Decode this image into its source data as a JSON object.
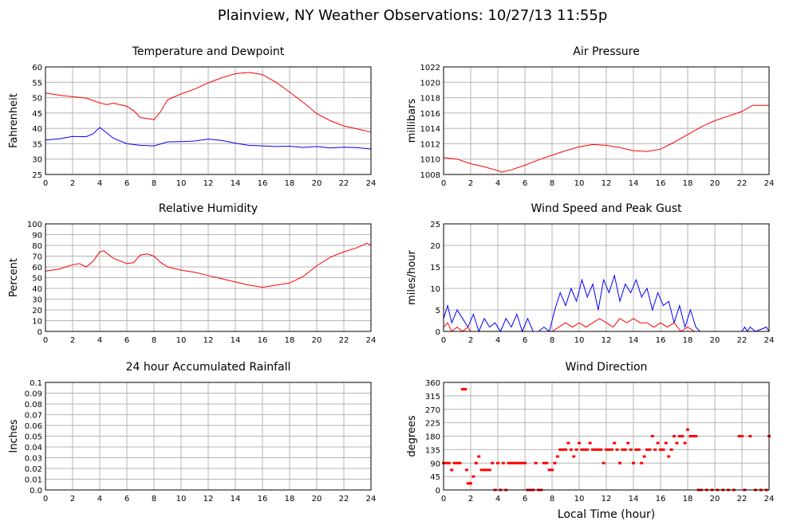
{
  "page": {
    "title": "Plainview, NY Weather Observations: 10/27/13 11:55p"
  },
  "colors": {
    "red": "#ff0000",
    "blue": "#0000ff",
    "grid": "#b4b4b4",
    "axis": "#000000"
  },
  "chart_data": [
    {
      "type": "line",
      "title": "Temperature and Dewpoint",
      "xlabel": "",
      "ylabel": "Fahrenheit",
      "xlim": [
        0,
        24
      ],
      "ylim": [
        25,
        60
      ],
      "xticks": [
        "0",
        "2",
        "4",
        "6",
        "8",
        "10",
        "12",
        "14",
        "16",
        "18",
        "20",
        "22",
        "24"
      ],
      "yticks": [
        "25",
        "30",
        "35",
        "40",
        "45",
        "50",
        "55",
        "60"
      ],
      "grid": true,
      "series": [
        {
          "color": "#ff0000",
          "x": [
            0,
            1,
            2,
            3,
            4,
            4.5,
            5,
            6,
            6.5,
            7,
            7.5,
            8,
            8.5,
            9,
            10,
            11,
            12,
            13,
            14,
            15,
            16,
            17,
            18,
            19,
            20,
            21,
            22,
            23,
            24
          ],
          "y": [
            51.5,
            50.8,
            50.3,
            49.8,
            48.3,
            47.7,
            48.2,
            47.2,
            45.8,
            43.5,
            43.2,
            42.8,
            45.5,
            49.3,
            51.2,
            52.8,
            54.8,
            56.5,
            57.8,
            58.2,
            57.5,
            55,
            51.8,
            48.5,
            44.8,
            42.5,
            40.8,
            39.8,
            38.8
          ]
        },
        {
          "color": "#0000ff",
          "x": [
            0,
            1,
            2,
            3,
            3.5,
            4,
            4.5,
            5,
            6,
            7,
            8,
            9,
            10,
            11,
            12,
            13,
            14,
            15,
            16,
            17,
            18,
            19,
            20,
            21,
            22,
            23,
            24
          ],
          "y": [
            36.2,
            36.6,
            37.4,
            37.3,
            38.2,
            40.3,
            38.6,
            36.8,
            35,
            34.5,
            34.3,
            35.6,
            35.7,
            35.9,
            36.5,
            36.1,
            35.2,
            34.5,
            34.3,
            34.1,
            34.2,
            33.8,
            34.1,
            33.6,
            33.9,
            33.7,
            33.3
          ]
        }
      ]
    },
    {
      "type": "line",
      "title": "Air Pressure",
      "xlabel": "",
      "ylabel": "millibars",
      "xlim": [
        0,
        24
      ],
      "ylim": [
        1008,
        1022
      ],
      "xticks": [
        "0",
        "2",
        "4",
        "6",
        "8",
        "10",
        "12",
        "14",
        "16",
        "18",
        "20",
        "22",
        "24"
      ],
      "yticks": [
        "1008",
        "1010",
        "1012",
        "1014",
        "1016",
        "1018",
        "1020",
        "1022"
      ],
      "grid": true,
      "series": [
        {
          "color": "#ff0000",
          "x": [
            0,
            1,
            2,
            3,
            4,
            4.3,
            5,
            6,
            7,
            8,
            9,
            10,
            11,
            12,
            13,
            14,
            15,
            16,
            17,
            18,
            19,
            20,
            21,
            22,
            22.8,
            24
          ],
          "y": [
            1010.2,
            1010,
            1009.4,
            1009,
            1008.5,
            1008.3,
            1008.6,
            1009.2,
            1009.9,
            1010.5,
            1011.1,
            1011.6,
            1011.9,
            1011.8,
            1011.5,
            1011.1,
            1011,
            1011.3,
            1012.2,
            1013.2,
            1014.2,
            1015,
            1015.6,
            1016.2,
            1017,
            1017
          ]
        }
      ]
    },
    {
      "type": "line",
      "title": "Relative Humidity",
      "xlabel": "",
      "ylabel": "Percent",
      "xlim": [
        0,
        24
      ],
      "ylim": [
        0,
        100
      ],
      "xticks": [
        "0",
        "2",
        "4",
        "6",
        "8",
        "10",
        "12",
        "14",
        "16",
        "18",
        "20",
        "22",
        "24"
      ],
      "yticks": [
        "0",
        "10",
        "20",
        "30",
        "40",
        "50",
        "60",
        "70",
        "80",
        "90",
        "100"
      ],
      "grid": true,
      "series": [
        {
          "color": "#ff0000",
          "x": [
            0,
            1,
            2,
            2.5,
            3,
            3.5,
            4,
            4.3,
            5,
            6,
            6.5,
            7,
            7.5,
            8,
            8.5,
            9,
            10,
            11,
            12,
            13,
            14,
            15,
            16,
            17,
            18,
            19,
            20,
            21,
            22,
            23,
            23.7,
            24
          ],
          "y": [
            56,
            58,
            62,
            63,
            60,
            65,
            74,
            75,
            68,
            63,
            64,
            71,
            72,
            70,
            64,
            60,
            57,
            55,
            52,
            49,
            46,
            43,
            41,
            43,
            45,
            51,
            61,
            69,
            74,
            78,
            82,
            80
          ]
        }
      ]
    },
    {
      "type": "line",
      "title": "Wind Speed and Peak Gust",
      "xlabel": "",
      "ylabel": "miles/hour",
      "xlim": [
        0,
        24
      ],
      "ylim": [
        0,
        25
      ],
      "xticks": [
        "0",
        "2",
        "4",
        "6",
        "8",
        "10",
        "12",
        "14",
        "16",
        "18",
        "20",
        "22",
        "24"
      ],
      "yticks": [
        "0",
        "5",
        "10",
        "15",
        "20",
        "25"
      ],
      "grid": true,
      "series": [
        {
          "color": "#0000ff",
          "x": [
            0,
            0.3,
            0.6,
            1,
            1.4,
            1.8,
            2.2,
            2.6,
            3,
            3.4,
            3.8,
            4.2,
            4.6,
            5,
            5.4,
            5.8,
            6.2,
            6.6,
            7,
            7.4,
            7.8,
            8.2,
            8.6,
            9,
            9.4,
            9.8,
            10.2,
            10.6,
            11,
            11.4,
            11.8,
            12.2,
            12.6,
            13,
            13.4,
            13.8,
            14.2,
            14.6,
            15,
            15.4,
            15.8,
            16.2,
            16.6,
            17,
            17.4,
            17.8,
            18.2,
            18.6,
            18.9,
            19,
            20,
            21,
            22,
            22.2,
            22.4,
            22.6,
            23,
            23.8,
            24
          ],
          "y": [
            3,
            6,
            2,
            5,
            3,
            1,
            4,
            0,
            3,
            1,
            2,
            0,
            3,
            1,
            4,
            0,
            3,
            0,
            0,
            1,
            0,
            5,
            9,
            6,
            10,
            7,
            12,
            8,
            11,
            5,
            12,
            9,
            13,
            7,
            11,
            9,
            12,
            8,
            10,
            5,
            9,
            6,
            7,
            2,
            6,
            1,
            5,
            1,
            0,
            0,
            0,
            0,
            0,
            1,
            0,
            1,
            0,
            1,
            0
          ]
        },
        {
          "color": "#ff0000",
          "x": [
            0,
            0.3,
            0.6,
            1,
            1.4,
            1.8,
            2,
            7.8,
            8,
            8.5,
            9,
            9.5,
            10,
            10.5,
            11,
            11.5,
            12,
            12.5,
            13,
            13.5,
            14,
            14.5,
            15,
            15.5,
            16,
            16.5,
            17,
            17.5,
            18,
            18.5,
            19,
            24
          ],
          "y": [
            1,
            2,
            0,
            1,
            0,
            1,
            0,
            0,
            0,
            1,
            2,
            1,
            2,
            1,
            2,
            3,
            2,
            1,
            3,
            2,
            3,
            2,
            2,
            1,
            2,
            1,
            2,
            0,
            1,
            0,
            0,
            0
          ]
        }
      ]
    },
    {
      "type": "line",
      "title": "24 hour Accumulated Rainfall",
      "xlabel": "",
      "ylabel": "Inches",
      "xlim": [
        0,
        24
      ],
      "ylim": [
        0,
        0.1
      ],
      "xticks": [
        "0",
        "2",
        "4",
        "6",
        "8",
        "10",
        "12",
        "14",
        "16",
        "18",
        "20",
        "22",
        "24"
      ],
      "yticks": [
        "0.0",
        "0.01",
        "0.02",
        "0.03",
        "0.04",
        "0.05",
        "0.06",
        "0.07",
        "0.08",
        "0.09",
        "0.1"
      ],
      "grid": true,
      "series": [
        {
          "color": "#ff0000",
          "x": [
            0,
            24
          ],
          "y": [
            0,
            0
          ]
        }
      ]
    },
    {
      "type": "scatter",
      "title": "Wind Direction",
      "xlabel": "Local Time (hour)",
      "ylabel": "degrees",
      "xlim": [
        0,
        24
      ],
      "ylim": [
        0,
        360
      ],
      "xticks": [
        "0",
        "2",
        "4",
        "6",
        "8",
        "10",
        "12",
        "14",
        "16",
        "18",
        "20",
        "22",
        "24"
      ],
      "yticks": [
        "0",
        "45",
        "90",
        "135",
        "180",
        "225",
        "270",
        "315",
        "360"
      ],
      "grid": true,
      "series": [
        {
          "color": "#ff0000",
          "x": [
            0,
            0.2,
            0.4,
            0.6,
            0.8,
            1,
            1.2,
            1.4,
            1.5,
            1.6,
            1.7,
            1.8,
            1.9,
            2,
            2.2,
            2.4,
            2.6,
            2.8,
            3,
            3.2,
            3.4,
            3.6,
            3.8,
            4,
            4.2,
            4.4,
            4.6,
            4.8,
            5,
            5.2,
            5.4,
            5.6,
            5.8,
            6,
            6.2,
            6.4,
            6.6,
            6.8,
            7,
            7.2,
            7.4,
            7.6,
            7.8,
            8,
            8.2,
            8.4,
            8.6,
            8.8,
            9,
            9.2,
            9.4,
            9.6,
            9.8,
            10,
            10.2,
            10.4,
            10.6,
            10.8,
            11,
            11.2,
            11.4,
            11.6,
            11.8,
            12,
            12.2,
            12.4,
            12.6,
            12.8,
            13,
            13.2,
            13.4,
            13.6,
            13.8,
            14,
            14.2,
            14.4,
            14.6,
            14.8,
            15,
            15.2,
            15.4,
            15.6,
            15.8,
            16,
            16.2,
            16.4,
            16.6,
            16.8,
            17,
            17.2,
            17.4,
            17.6,
            17.8,
            18,
            18.2,
            18.4,
            18.6,
            18.8,
            19,
            19.4,
            19.8,
            20.2,
            20.6,
            21,
            21.4,
            21.8,
            22,
            22.2,
            22.6,
            23,
            23.4,
            23.8,
            24
          ],
          "y": [
            90,
            90,
            90,
            67,
            90,
            90,
            90,
            337,
            337,
            337,
            67,
            22,
            22,
            22,
            45,
            90,
            112,
            67,
            67,
            67,
            67,
            90,
            0,
            90,
            0,
            90,
            0,
            90,
            90,
            90,
            90,
            90,
            90,
            90,
            0,
            0,
            0,
            90,
            0,
            0,
            90,
            90,
            67,
            67,
            90,
            112,
            135,
            135,
            135,
            157,
            135,
            112,
            135,
            157,
            135,
            135,
            135,
            157,
            135,
            135,
            135,
            135,
            90,
            135,
            135,
            135,
            157,
            135,
            90,
            135,
            135,
            157,
            135,
            90,
            135,
            135,
            90,
            112,
            135,
            135,
            180,
            135,
            157,
            135,
            135,
            157,
            112,
            135,
            180,
            157,
            180,
            180,
            157,
            202,
            180,
            180,
            180,
            0,
            0,
            0,
            0,
            0,
            0,
            0,
            0,
            180,
            180,
            0,
            180,
            0,
            0,
            0,
            180
          ]
        }
      ]
    }
  ]
}
